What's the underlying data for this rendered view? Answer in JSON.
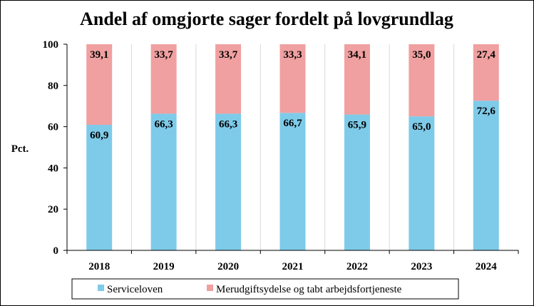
{
  "chart_data": {
    "type": "bar",
    "stacked": true,
    "title": "Andel af  omgjorte sager fordelt på lovgrundlag",
    "xlabel": "",
    "ylabel": "Pct.",
    "ylim": [
      0,
      100
    ],
    "yticks": [
      0,
      20,
      40,
      60,
      80,
      100
    ],
    "grid": "vertical",
    "legend_position": "bottom",
    "categories": [
      "2018",
      "2019",
      "2020",
      "2021",
      "2022",
      "2023",
      "2024"
    ],
    "series": [
      {
        "name": "Serviceloven",
        "color": "#7ecbe9",
        "values": [
          60.9,
          66.3,
          66.3,
          66.7,
          65.9,
          65.0,
          72.6
        ],
        "labels": [
          "60,9",
          "66,3",
          "66,3",
          "66,7",
          "65,9",
          "65,0",
          "72,6"
        ]
      },
      {
        "name": "Merudgiftsydelse og tabt arbejdsfortjeneste",
        "color": "#f0a0a0",
        "values": [
          39.1,
          33.7,
          33.7,
          33.3,
          34.1,
          35.0,
          27.4
        ],
        "labels": [
          "39,1",
          "33,7",
          "33,7",
          "33,3",
          "34,1",
          "35,0",
          "27,4"
        ]
      }
    ]
  }
}
